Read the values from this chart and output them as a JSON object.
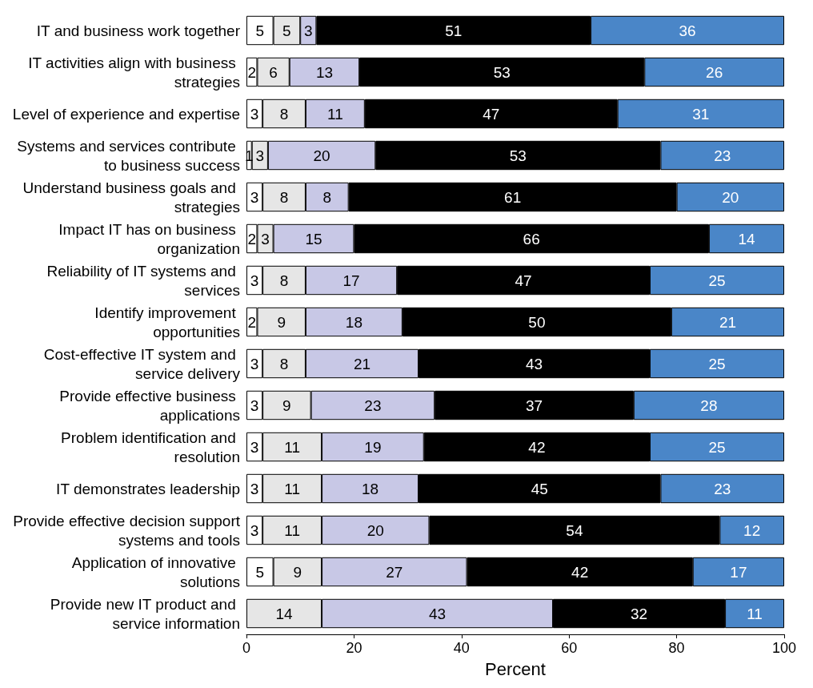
{
  "chart_data": {
    "type": "bar",
    "orientation": "horizontal",
    "stacked": true,
    "data_labels": true,
    "grid": false,
    "xlabel": "Percent",
    "xlim": [
      0,
      100
    ],
    "xticks": [
      0,
      20,
      40,
      60,
      80,
      100
    ],
    "categories": [
      "IT and business work together",
      "IT activities align with business strategies",
      "Level of experience and expertise",
      "Systems and services contribute to business success",
      "Understand business goals and strategies",
      "Impact IT has on business organization",
      "Reliability of IT systems and services",
      "Identify improvement opportunities",
      "Cost-effective IT system and service delivery",
      "Provide effective business applications",
      "Problem identification and resolution",
      "IT demonstrates leadership",
      "Provide effective decision support systems and tools",
      "Application of innovative solutions",
      "Provide new IT product and service information"
    ],
    "series": [
      {
        "color": "#ffffff",
        "values": [
          5,
          2,
          3,
          1,
          3,
          2,
          3,
          2,
          3,
          3,
          3,
          3,
          3,
          5,
          null
        ]
      },
      {
        "color": "#e6e6e6",
        "values": [
          5,
          6,
          8,
          3,
          8,
          3,
          8,
          9,
          8,
          9,
          11,
          11,
          11,
          9,
          14
        ]
      },
      {
        "color": "#c8c8e6",
        "values": [
          3,
          13,
          11,
          20,
          8,
          15,
          17,
          18,
          21,
          23,
          19,
          18,
          20,
          27,
          43
        ]
      },
      {
        "color": "#000000",
        "values": [
          51,
          53,
          47,
          53,
          61,
          66,
          47,
          50,
          43,
          37,
          42,
          45,
          54,
          42,
          32
        ]
      },
      {
        "color": "#4a86c8",
        "values": [
          36,
          26,
          31,
          23,
          20,
          14,
          25,
          21,
          25,
          28,
          25,
          23,
          12,
          17,
          11
        ]
      }
    ]
  }
}
